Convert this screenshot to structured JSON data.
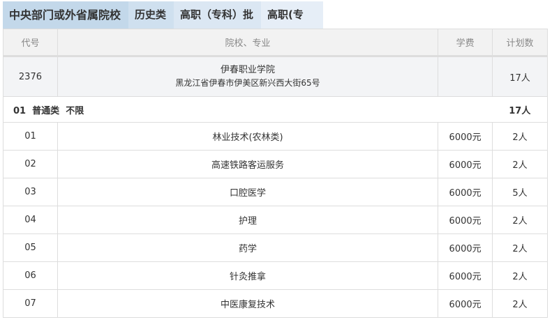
{
  "tabs": [
    "中央部门或外省属院校",
    "历史类",
    "高职（专科）批",
    "高职(专科)"
  ],
  "headers": {
    "code": "代号",
    "name": "院校、专业",
    "fee": "学费",
    "count": "计划数"
  },
  "school": {
    "code": "2376",
    "name": "伊春职业学院",
    "address": "黑龙江省伊春市伊美区新兴西大街65号",
    "count": "17人"
  },
  "group": {
    "label": "01  普通类  不限",
    "count": "17人"
  },
  "majors": [
    {
      "code": "01",
      "name": "林业技术(农林类)",
      "fee": "6000元",
      "count": "2人"
    },
    {
      "code": "02",
      "name": "高速铁路客运服务",
      "fee": "6000元",
      "count": "2人"
    },
    {
      "code": "03",
      "name": "口腔医学",
      "fee": "6000元",
      "count": "5人"
    },
    {
      "code": "04",
      "name": "护理",
      "fee": "6000元",
      "count": "2人"
    },
    {
      "code": "05",
      "name": "药学",
      "fee": "6000元",
      "count": "2人"
    },
    {
      "code": "06",
      "name": "针灸推拿",
      "fee": "6000元",
      "count": "2人"
    },
    {
      "code": "07",
      "name": "中医康复技术",
      "fee": "6000元",
      "count": "2人"
    }
  ]
}
